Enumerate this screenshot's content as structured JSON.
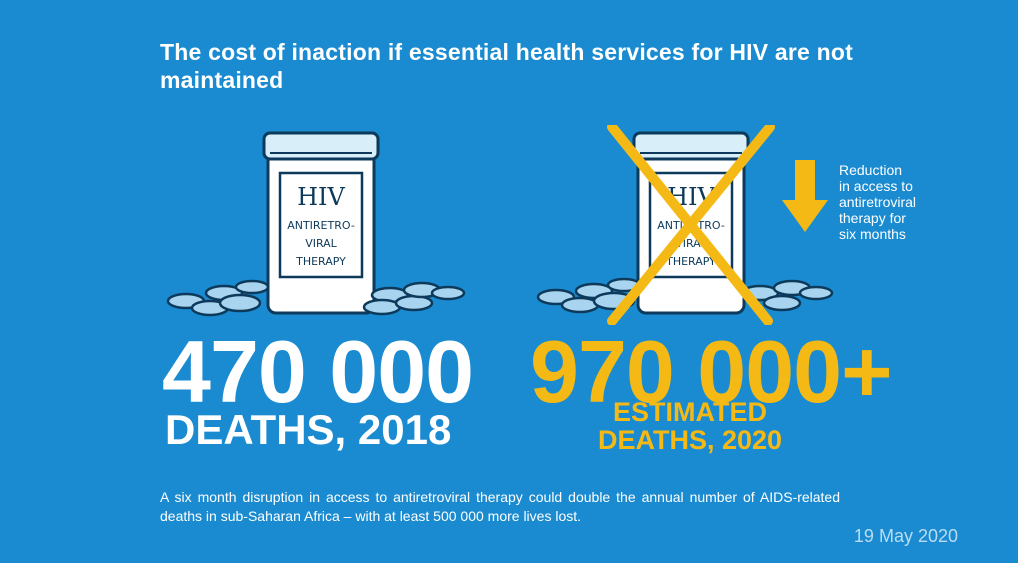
{
  "title": "The cost of inaction if essential health services for HIV are not maintained",
  "bottle": {
    "line1": "HIV",
    "line2": "ANTIRETRO-",
    "line3": "VIRAL",
    "line4": "THERAPY"
  },
  "left_stat": {
    "number": "470 000",
    "caption": "DEATHS, 2018"
  },
  "right_stat": {
    "number": "970 000+",
    "caption_line1": "ESTIMATED",
    "caption_line2": "DEATHS, 2020"
  },
  "reduction_note": {
    "line1": "Reduction",
    "line2": "in access to",
    "line3": "antiretroviral",
    "line4": "therapy for",
    "line5": "six months"
  },
  "footnote": "A six month disruption in access to antiretroviral therapy could double the annual number of AIDS-related deaths in sub-Saharan Africa – with at least 500 000 more lives lost.",
  "date": "19 May 2020",
  "colors": {
    "background": "#1a8bd0",
    "accent_yellow": "#f5b915",
    "white": "#ffffff",
    "pill": "#a9d4ef"
  }
}
